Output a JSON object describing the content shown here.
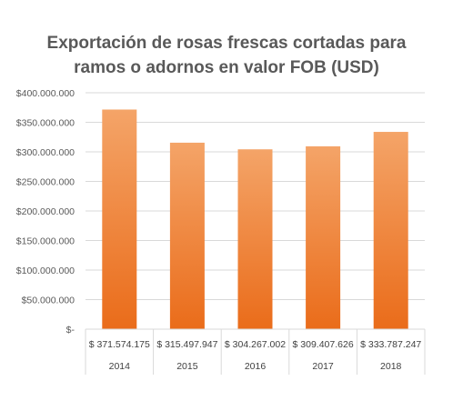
{
  "chart_data": {
    "type": "bar",
    "title_lines": [
      "Exportación de rosas frescas cortadas para",
      "ramos o adornos en valor FOB (USD)"
    ],
    "categories": [
      "2014",
      "2015",
      "2016",
      "2017",
      "2018"
    ],
    "values": [
      371574175,
      315497947,
      304267002,
      309407626,
      333787247
    ],
    "data_labels": [
      "$ 371.574.175",
      "$ 315.497.947",
      "$ 304.267.002",
      "$ 309.407.626",
      "$ 333.787.247"
    ],
    "y_ticks": [
      0,
      50000000,
      100000000,
      150000000,
      200000000,
      250000000,
      300000000,
      350000000,
      400000000
    ],
    "y_tick_labels": [
      "$-",
      "$50.000.000",
      "$100.000.000",
      "$150.000.000",
      "$200.000.000",
      "$250.000.000",
      "$300.000.000",
      "$350.000.000",
      "$400.000.000"
    ],
    "ylim": [
      0,
      400000000
    ],
    "xlabel": "",
    "ylabel": "",
    "grid": true,
    "legend": "none",
    "colors": {
      "bar_top": "#F4A468",
      "bar_bottom": "#EA6C1A",
      "grid": "#D9D9D9",
      "text": "#595959"
    }
  }
}
